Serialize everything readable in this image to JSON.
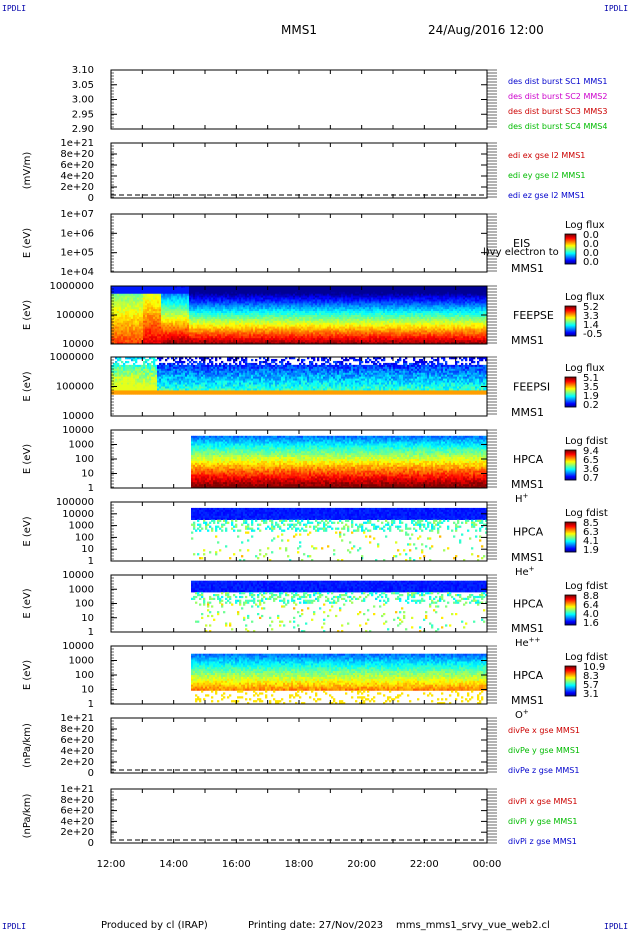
{
  "header": {
    "corner_label": "IPDLI",
    "spacecraft": "MMS1",
    "date_time": "24/Aug/2016 12:00"
  },
  "footer": {
    "produced_by": "Produced by cl (IRAP)",
    "printing_date": "Printing date: 27/Nov/2023",
    "script_name": "mms_mms1_srvy_vue_web2.cl"
  },
  "time_axis": {
    "tick_labels": [
      "12:00",
      "14:00",
      "16:00",
      "18:00",
      "20:00",
      "22:00",
      "00:00"
    ],
    "range_hours": [
      12,
      24
    ]
  },
  "chart_data": [
    {
      "type": "line",
      "panel": "des-dist-burst",
      "ylabel": "",
      "ylim": [
        2.9,
        3.1
      ],
      "tick_labels": [
        "3.10",
        "3.05",
        "3.00",
        "2.95",
        "2.90"
      ],
      "series": [
        {
          "name": "des dist burst SC1 MMS1",
          "color": "#0000cc",
          "values": []
        },
        {
          "name": "des dist burst SC2 MMS2",
          "color": "#cc00cc",
          "values": []
        },
        {
          "name": "des dist burst SC3 MMS3",
          "color": "#cc0000",
          "values": []
        },
        {
          "name": "des dist burst SC4 MMS4",
          "color": "#00bb00",
          "values": []
        }
      ]
    },
    {
      "type": "line",
      "panel": "edi-e-gse",
      "ylabel": "(mV/m)",
      "ylim": [
        0,
        1e+21
      ],
      "tick_labels": [
        "1e+21",
        "8e+20",
        "6e+20",
        "4e+20",
        "2e+20",
        "0"
      ],
      "series": [
        {
          "name": "edi ex gse l2 MMS1",
          "color": "#cc0000",
          "values": []
        },
        {
          "name": "edi ey gse l2 MMS1",
          "color": "#00bb00",
          "values": []
        },
        {
          "name": "edi ez gse l2 MMS1",
          "color": "#0000cc",
          "values": []
        }
      ]
    },
    {
      "type": "heatmap",
      "panel": "eis",
      "ylabel": "E (eV)",
      "ylim": [
        10000,
        10000000
      ],
      "log_y": true,
      "tick_labels": [
        "1e+07",
        "1e+06",
        "1e+05",
        "1e+04"
      ],
      "instrument": "EIS",
      "sublabel": "MMS1",
      "overlay_text": "l)vy electron to",
      "colorbar": {
        "title": "Log flux",
        "ticks": [
          "0.0",
          "0.0",
          "0.0",
          "0.0"
        ]
      },
      "data": "empty"
    },
    {
      "type": "heatmap",
      "panel": "feeps-e",
      "ylabel": "E (eV)",
      "ylim": [
        10000,
        1000000
      ],
      "log_y": true,
      "tick_labels": [
        "1000000",
        "100000",
        "10000"
      ],
      "instrument": "FEEPSE",
      "sublabel": "MMS1",
      "colorbar": {
        "title": "Log flux",
        "ticks": [
          "5.2",
          "3.3",
          "1.4",
          "-0.5"
        ]
      },
      "data": "energetic electron spectrogram, intense (red) near 12:00-13:30 decreasing after 14:30"
    },
    {
      "type": "heatmap",
      "panel": "feeps-i",
      "ylabel": "E (eV)",
      "ylim": [
        10000,
        1000000
      ],
      "log_y": true,
      "tick_labels": [
        "1000000",
        "100000",
        "10000"
      ],
      "instrument": "FEEPSI",
      "sublabel": "MMS1",
      "colorbar": {
        "title": "Log flux",
        "ticks": [
          "5.1",
          "3.5",
          "1.9",
          "0.2"
        ]
      },
      "data": "energetic ion spectrogram"
    },
    {
      "type": "heatmap",
      "panel": "hpca-h",
      "ylabel": "E (eV)",
      "ylim": [
        1,
        10000
      ],
      "log_y": true,
      "tick_labels": [
        "10000",
        "1000",
        "100",
        "10",
        "1"
      ],
      "instrument": "HPCA",
      "sublabel": "MMS1",
      "species": "H",
      "species_sup": "+",
      "colorbar": {
        "title": "Log fdist",
        "ticks": [
          "9.4",
          "6.5",
          "3.6",
          "0.7"
        ]
      },
      "data": "starts at 14:30"
    },
    {
      "type": "heatmap",
      "panel": "hpca-he",
      "ylabel": "E (eV)",
      "ylim": [
        1,
        100000
      ],
      "log_y": true,
      "tick_labels": [
        "100000",
        "10000",
        "1000",
        "100",
        "10",
        "1"
      ],
      "instrument": "HPCA",
      "sublabel": "MMS1",
      "species": "He",
      "species_sup": "+",
      "colorbar": {
        "title": "Log fdist",
        "ticks": [
          "8.5",
          "6.3",
          "4.1",
          "1.9"
        ]
      },
      "data": "starts at 14:30"
    },
    {
      "type": "heatmap",
      "panel": "hpca-he2",
      "ylabel": "E (eV)",
      "ylim": [
        1,
        10000
      ],
      "log_y": true,
      "tick_labels": [
        "10000",
        "1000",
        "100",
        "10",
        "1"
      ],
      "instrument": "HPCA",
      "sublabel": "MMS1",
      "species": "He",
      "species_sup": "++",
      "colorbar": {
        "title": "Log fdist",
        "ticks": [
          "8.8",
          "6.4",
          "4.0",
          "1.6"
        ]
      },
      "data": "starts at 14:30"
    },
    {
      "type": "heatmap",
      "panel": "hpca-o",
      "ylabel": "E (eV)",
      "ylim": [
        1,
        10000
      ],
      "log_y": true,
      "tick_labels": [
        "10000",
        "1000",
        "100",
        "10",
        "1"
      ],
      "instrument": "HPCA",
      "sublabel": "MMS1",
      "species": "O",
      "species_sup": "+",
      "colorbar": {
        "title": "Log fdist",
        "ticks": [
          "10.9",
          "8.3",
          "5.7",
          "3.1"
        ]
      },
      "data": "starts at 14:30"
    },
    {
      "type": "line",
      "panel": "divpe",
      "ylabel": "(nPa/km)",
      "ylim": [
        0,
        1e+21
      ],
      "tick_labels": [
        "1e+21",
        "8e+20",
        "6e+20",
        "4e+20",
        "2e+20",
        "0"
      ],
      "series": [
        {
          "name": "divPe x gse MMS1",
          "color": "#cc0000",
          "values": []
        },
        {
          "name": "divPe y gse MMS1",
          "color": "#00bb00",
          "values": []
        },
        {
          "name": "divPe z gse MMS1",
          "color": "#0000cc",
          "values": []
        }
      ]
    },
    {
      "type": "line",
      "panel": "divpi",
      "ylabel": "(nPa/km)",
      "ylim": [
        0,
        1e+21
      ],
      "tick_labels": [
        "1e+21",
        "8e+20",
        "6e+20",
        "4e+20",
        "2e+20",
        "0"
      ],
      "series": [
        {
          "name": "divPi x gse MMS1",
          "color": "#cc0000",
          "values": []
        },
        {
          "name": "divPi y gse MMS1",
          "color": "#00bb00",
          "values": []
        },
        {
          "name": "divPi z gse MMS1",
          "color": "#0000cc",
          "values": []
        }
      ]
    }
  ]
}
